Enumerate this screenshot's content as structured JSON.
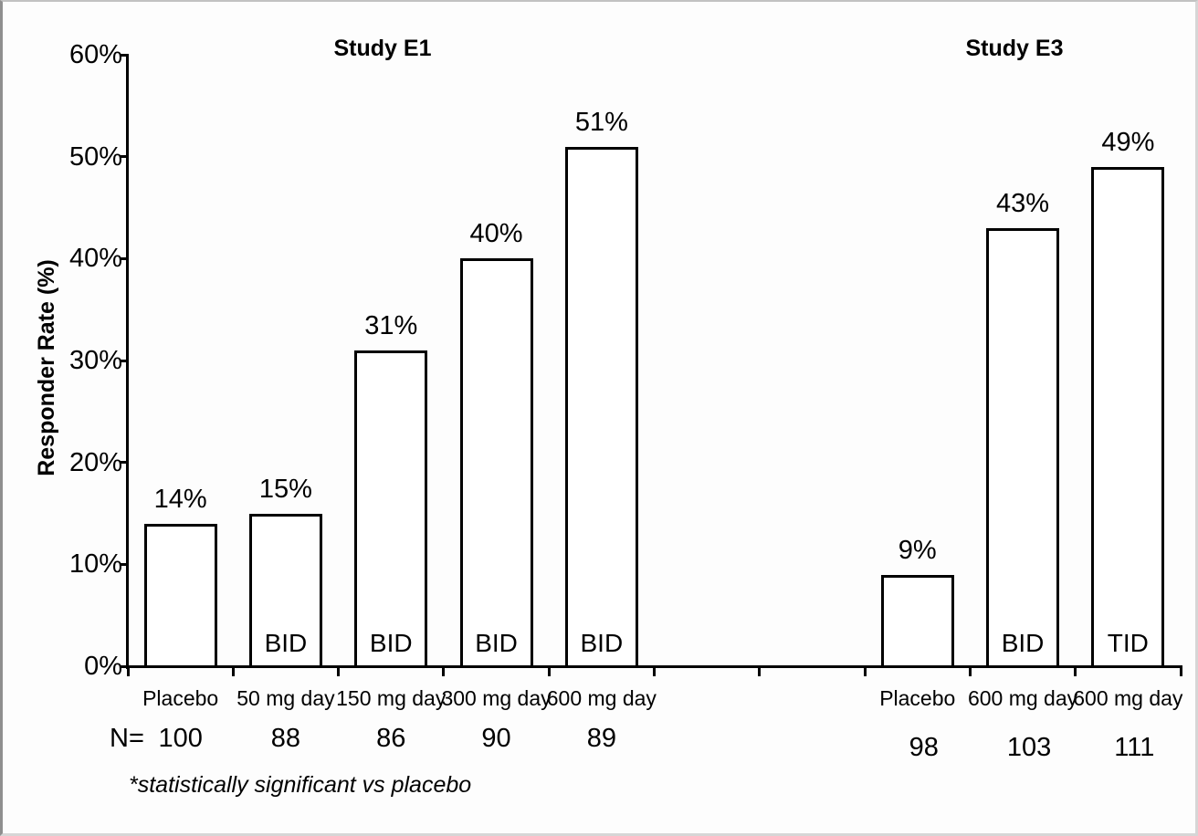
{
  "chart_data": {
    "type": "bar",
    "title_left": "Study E1",
    "title_right": "Study E3",
    "ylabel": "Responder Rate (%)",
    "ylim": [
      0,
      60
    ],
    "ytick_step": 10,
    "ytick_labels": [
      "0%",
      "10%",
      "20%",
      "30%",
      "40%",
      "50%",
      "60%"
    ],
    "grid": "off",
    "legend": "none",
    "n_row_label": "N=",
    "footnote": "*statistically significant vs placebo",
    "groups": [
      {
        "study": "Study E1",
        "n_dx": 0,
        "n_dy": 0,
        "bars": [
          {
            "category": "Placebo",
            "value": 14,
            "value_label": "14%",
            "freq": "",
            "n": "100",
            "slot": 0
          },
          {
            "category": "50 mg day",
            "value": 15,
            "value_label": "15%",
            "freq": "BID",
            "n": "88",
            "slot": 1
          },
          {
            "category": "150 mg day",
            "value": 31,
            "value_label": "31%",
            "freq": "BID",
            "n": "86",
            "slot": 2
          },
          {
            "category": "300 mg day",
            "value": 40,
            "value_label": "40%",
            "freq": "BID",
            "n": "90",
            "slot": 3
          },
          {
            "category": "600 mg day",
            "value": 51,
            "value_label": "51%",
            "freq": "BID",
            "n": "89",
            "slot": 4
          }
        ]
      },
      {
        "study": "Study E3",
        "n_dx": 7,
        "n_dy": 10,
        "bars": [
          {
            "category": "Placebo",
            "value": 9,
            "value_label": "9%",
            "freq": "",
            "n": "98",
            "slot": 7
          },
          {
            "category": "600 mg day",
            "value": 43,
            "value_label": "43%",
            "freq": "BID",
            "n": "103",
            "slot": 8
          },
          {
            "category": "600 mg day",
            "value": 49,
            "value_label": "49%",
            "freq": "TID",
            "n": "111",
            "slot": 9
          }
        ]
      }
    ],
    "colors": {
      "bar_fill": "#ffffff",
      "bar_border": "#000000",
      "axis": "#000000",
      "text": "#000000",
      "background": "#fdfdfd"
    }
  }
}
